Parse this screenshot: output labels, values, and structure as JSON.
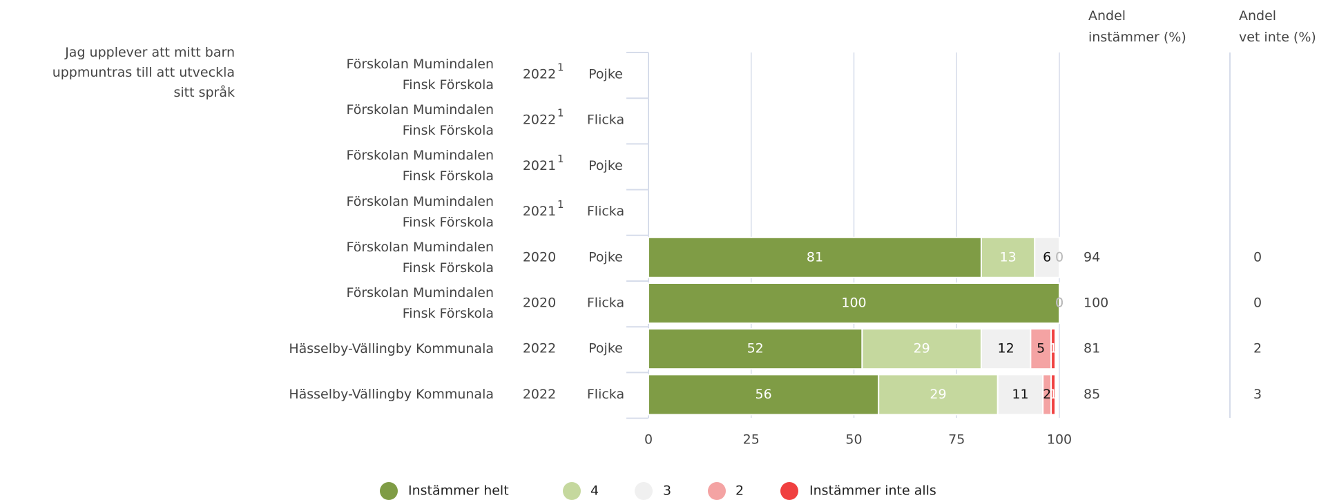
{
  "chart_data": {
    "type": "stacked-bar-horizontal",
    "question": "Jag upplever att mitt barn uppmuntras till att utveckla sitt språk",
    "categories": [
      "Förskolan Mumindalen\nFinsk Förskola",
      "Förskolan Mumindalen\nFinsk Förskola",
      "Förskolan Mumindalen\nFinsk Förskola",
      "Förskolan Mumindalen\nFinsk Förskola",
      "Förskolan Mumindalen\nFinsk Förskola",
      "Förskolan Mumindalen\nFinsk Förskola",
      "Hässelby-Vällingby Kommunala",
      "Hässelby-Vällingby Kommunala"
    ],
    "years": [
      "2022",
      "2022",
      "2021",
      "2021",
      "2020",
      "2020",
      "2022",
      "2022"
    ],
    "footnotes": [
      "1",
      "1",
      "1",
      "1",
      null,
      null,
      null,
      null
    ],
    "groups": [
      "Pojke",
      "Flicka",
      "Pojke",
      "Flicka",
      "Pojke",
      "Flicka",
      "Pojke",
      "Flicka"
    ],
    "series": [
      {
        "name": "Instämmer helt",
        "color": "#7f9c45",
        "label_color": "#ffffff",
        "values": [
          null,
          null,
          null,
          null,
          81,
          100,
          52,
          56
        ]
      },
      {
        "name": "4",
        "color": "#c5d89e",
        "label_color": "#ffffff",
        "values": [
          null,
          null,
          null,
          null,
          13,
          0,
          29,
          29
        ]
      },
      {
        "name": "3",
        "color": "#f0f0f0",
        "label_color": "#111111",
        "values": [
          null,
          null,
          null,
          null,
          6,
          0,
          12,
          11
        ]
      },
      {
        "name": "2",
        "color": "#f4a3a3",
        "label_color": "#111111",
        "values": [
          null,
          null,
          null,
          null,
          0,
          0,
          5,
          2
        ]
      },
      {
        "name": "Instämmer inte alls",
        "color": "#f04040",
        "label_color": "#ffffff",
        "values": [
          null,
          null,
          null,
          null,
          0,
          0,
          1,
          1
        ]
      }
    ],
    "columns": [
      {
        "header": "Andel\ninstämmer (%)",
        "values": [
          null,
          null,
          null,
          null,
          94,
          100,
          81,
          85
        ]
      },
      {
        "header": "Andel\nvet inte (%)",
        "values": [
          null,
          null,
          null,
          null,
          0,
          0,
          2,
          3
        ]
      }
    ],
    "xlim": [
      0,
      100
    ],
    "xticks": [
      0,
      25,
      50,
      75,
      100
    ],
    "grid": true
  }
}
